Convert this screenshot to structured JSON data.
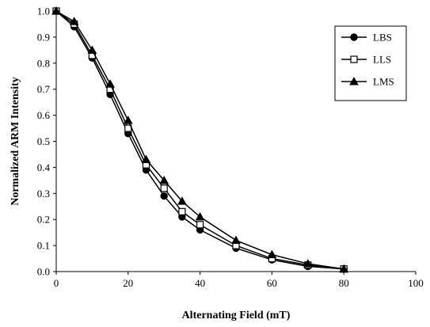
{
  "chart_data": {
    "type": "line",
    "xlabel": "Alternating Field (mT)",
    "ylabel": "Normalized ARM Intensity",
    "xlim": [
      0,
      100
    ],
    "ylim": [
      0,
      1
    ],
    "x_ticks": [
      0,
      20,
      40,
      60,
      80,
      100
    ],
    "x_tick_labels": [
      "0",
      "20",
      "40",
      "60",
      "80",
      "100"
    ],
    "y_ticks": [
      0,
      0.1,
      0.2,
      0.3,
      0.4,
      0.5,
      0.6,
      0.7,
      0.8,
      0.9,
      1.0
    ],
    "y_tick_labels": [
      "0.0",
      "0.1",
      "0.2",
      "0.3",
      "0.4",
      "0.5",
      "0.6",
      "0.7",
      "0.8",
      "0.9",
      "1.0"
    ],
    "grid": false,
    "legend_position": "top-right",
    "series": [
      {
        "name": "LBS",
        "marker": "filled-circle",
        "color": "#000000",
        "x": [
          0,
          5,
          10,
          15,
          20,
          25,
          30,
          35,
          40,
          50,
          60,
          70,
          80
        ],
        "y": [
          1.0,
          0.94,
          0.82,
          0.68,
          0.53,
          0.39,
          0.29,
          0.21,
          0.16,
          0.09,
          0.045,
          0.02,
          0.01
        ]
      },
      {
        "name": "LLS",
        "marker": "open-square",
        "color": "#000000",
        "x": [
          0,
          5,
          10,
          15,
          20,
          25,
          30,
          35,
          40,
          50,
          60,
          70,
          80
        ],
        "y": [
          1.0,
          0.95,
          0.83,
          0.7,
          0.55,
          0.41,
          0.32,
          0.23,
          0.18,
          0.1,
          0.05,
          0.025,
          0.01
        ]
      },
      {
        "name": "LMS",
        "marker": "filled-triangle",
        "color": "#000000",
        "x": [
          0,
          5,
          10,
          15,
          20,
          25,
          30,
          35,
          40,
          50,
          60,
          70,
          80
        ],
        "y": [
          1.0,
          0.96,
          0.85,
          0.72,
          0.58,
          0.43,
          0.35,
          0.27,
          0.21,
          0.12,
          0.065,
          0.03,
          0.01
        ]
      }
    ]
  }
}
